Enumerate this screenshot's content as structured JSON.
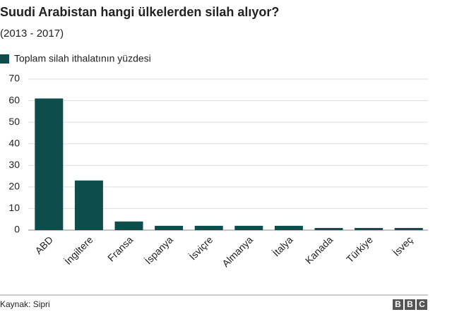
{
  "chart_data": {
    "type": "bar",
    "title": "Suudi Arabistan hangi ülkelerden silah alıyor?",
    "subtitle": "(2013 - 2017)",
    "categories": [
      "ABD",
      "İngiltere",
      "Fransa",
      "İspanya",
      "İsviçre",
      "Almanya",
      "İtalya",
      "Kanada",
      "Türkiye",
      "İsveç"
    ],
    "series": [
      {
        "name": "Toplam silah ithalatının yüzdesi",
        "color": "#0f4c4c",
        "values": [
          61,
          23,
          4,
          2,
          2,
          2,
          2,
          1,
          1,
          1
        ]
      }
    ],
    "ylim": [
      0,
      70
    ],
    "yticks": [
      0,
      10,
      20,
      30,
      40,
      50,
      60,
      70
    ],
    "grid": true,
    "source": "Kaynak: Sipri",
    "logo": [
      "B",
      "B",
      "C"
    ]
  }
}
